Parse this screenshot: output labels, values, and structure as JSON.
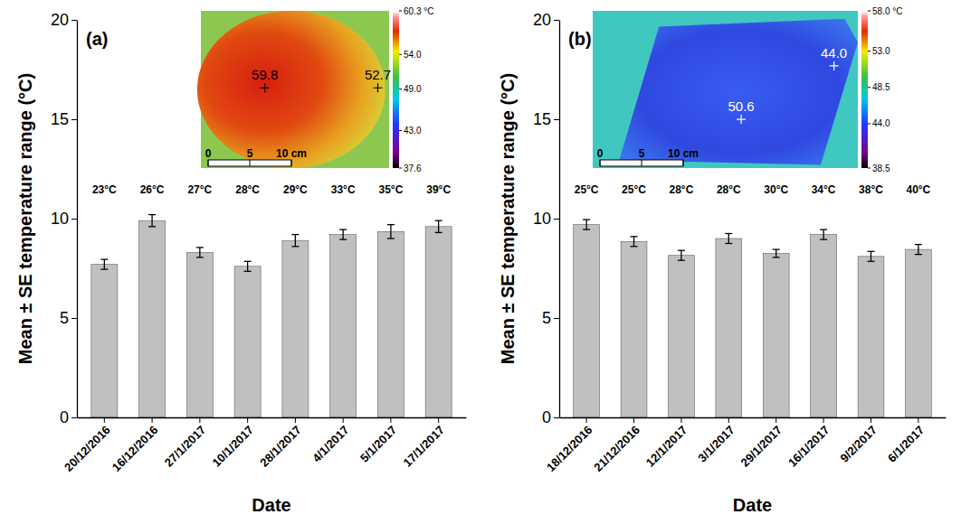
{
  "chart_data": [
    {
      "type": "bar",
      "panel_label": "(a)",
      "categories": [
        "20/12/2016",
        "16/12/2016",
        "27/1/2017",
        "10/1/2017",
        "28/1/2017",
        "4/1/2017",
        "5/1/2017",
        "17/1/2017"
      ],
      "values": [
        7.7,
        9.9,
        8.3,
        7.6,
        8.9,
        9.2,
        9.35,
        9.6
      ],
      "errors": [
        0.25,
        0.3,
        0.25,
        0.25,
        0.3,
        0.25,
        0.35,
        0.3
      ],
      "annotations": [
        "23°C",
        "26°C",
        "27°C",
        "28°C",
        "29°C",
        "33°C",
        "35°C",
        "39°C"
      ],
      "color": "#c0c0c0",
      "x_label": "Date",
      "y_label": "Mean ± SE temperature range (°C)",
      "ylim": [
        0,
        20
      ],
      "yticks": [
        0,
        5,
        10,
        15,
        20
      ],
      "thermal_image": {
        "spot_temperatures": [
          59.8,
          52.7
        ],
        "color_bar": {
          "range": [
            37.6,
            60.3
          ],
          "ticks": [
            {
              "value": 60.3,
              "label": "60.3 °C"
            },
            {
              "value": 54,
              "label": "54.0"
            },
            {
              "value": 49,
              "label": "49.0"
            },
            {
              "value": 43,
              "label": "43.0"
            },
            37.6
          ]
        },
        "scale_bar": {
          "range": [
            0,
            10
          ],
          "ticks": [
            0,
            5,
            {
              "value": 10,
              "label": "10 cm"
            }
          ]
        }
      }
    },
    {
      "type": "bar",
      "panel_label": "(b)",
      "categories": [
        "18/12/2016",
        "21/12/2016",
        "12/1/2017",
        "3/1/2017",
        "29/1/2017",
        "16/1/2017",
        "9/2/2017",
        "6/1/2017"
      ],
      "values": [
        9.7,
        8.85,
        8.15,
        9.0,
        8.25,
        9.2,
        8.1,
        8.45
      ],
      "errors": [
        0.25,
        0.25,
        0.25,
        0.25,
        0.2,
        0.25,
        0.25,
        0.25
      ],
      "annotations": [
        "25°C",
        "25°C",
        "28°C",
        "28°C",
        "30°C",
        "34°C",
        "38°C",
        "40°C"
      ],
      "color": "#c0c0c0",
      "x_label": "Date",
      "y_label": "Mean ± SE temperature range (°C)",
      "ylim": [
        0,
        20
      ],
      "yticks": [
        0,
        5,
        10,
        15,
        20
      ],
      "thermal_image": {
        "spot_temperatures": [
          {
            "value": 44,
            "label": "44.0"
          },
          50.6
        ],
        "color_bar": {
          "range": [
            38.5,
            58
          ],
          "ticks": [
            {
              "value": 58,
              "label": "58.0 °C"
            },
            {
              "value": 53,
              "label": "53.0"
            },
            48.5,
            {
              "value": 44,
              "label": "44.0"
            },
            38.5
          ]
        },
        "scale_bar": {
          "range": [
            0,
            10
          ],
          "ticks": [
            0,
            5,
            {
              "value": 10,
              "label": "10 cm"
            }
          ]
        }
      }
    }
  ]
}
